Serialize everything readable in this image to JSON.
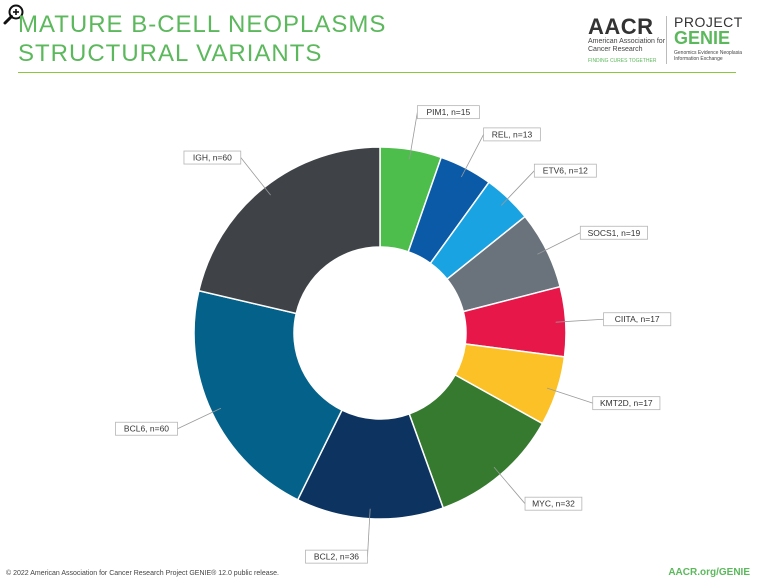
{
  "title_line1": "MATURE B-CELL NEOPLASMS",
  "title_line2": "STRUCTURAL VARIANTS",
  "logos": {
    "aacr_word": "AACR",
    "aacr_sub": "American Association for Cancer Research",
    "aacr_tagline": "FINDING CURES TOGETHER",
    "genie_project": "PROJECT",
    "genie_word": "GENIE",
    "genie_sub": "Genomics Evidence Neoplasia Information Exchange"
  },
  "footer": {
    "copyright": "© 2022 American Association for Cancer Research Project GENIE® 12.0 public release.",
    "link": "AACR.org/GENIE"
  },
  "colors": {
    "title_green": "#5cb85c",
    "PIM1": "#4dbd4b",
    "REL": "#0a5aa8",
    "ETV6": "#1aa3e2",
    "SOCS1": "#6a727b",
    "CIITA": "#e8174a",
    "KMT2D": "#fbc126",
    "MYC": "#357a2e",
    "BCL2": "#0d3461",
    "BCL6": "#04628a",
    "IGH": "#3f4347"
  },
  "chart_data": {
    "type": "pie",
    "donut": true,
    "start_position": "top (12 o'clock), clockwise",
    "legend": "none (direct callout labels)",
    "categories": [
      "PIM1",
      "REL",
      "ETV6",
      "SOCS1",
      "CIITA",
      "KMT2D",
      "MYC",
      "BCL2",
      "BCL6",
      "IGH"
    ],
    "values": [
      15,
      13,
      12,
      19,
      17,
      17,
      32,
      36,
      60,
      60
    ],
    "labels": [
      "PIM1, n=15",
      "REL, n=13",
      "ETV6, n=12",
      "SOCS1, n=19",
      "CIITA, n=17",
      "KMT2D, n=17",
      "MYC, n=32",
      "BCL2, n=36",
      "BCL6, n=60",
      "IGH, n=60"
    ]
  }
}
